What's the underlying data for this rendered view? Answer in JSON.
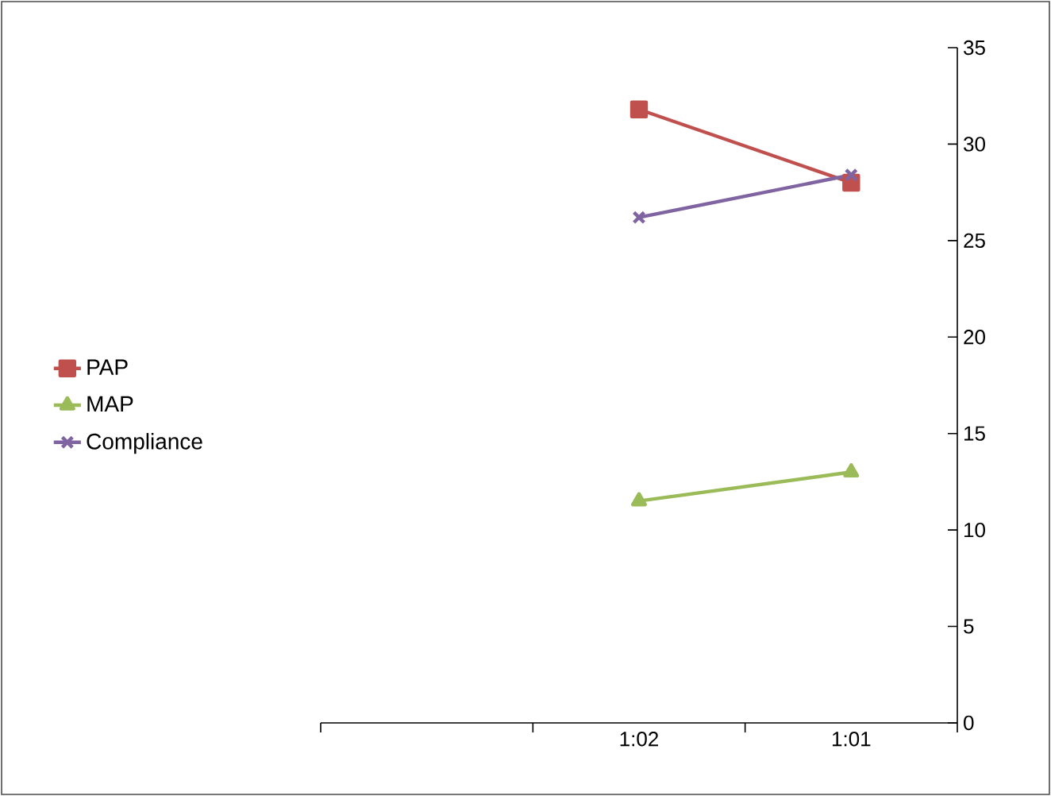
{
  "chart_data": {
    "type": "line",
    "categories": [
      null,
      "1:02",
      "1:01"
    ],
    "series": [
      {
        "name": "PAP",
        "color": "#c0504d",
        "marker": "square",
        "values": [
          null,
          31.8,
          28.0
        ]
      },
      {
        "name": "MAP",
        "color": "#9bbb59",
        "marker": "triangle",
        "values": [
          null,
          11.5,
          13.0
        ]
      },
      {
        "name": "Compliance",
        "color": "#8064a2",
        "marker": "cross",
        "values": [
          null,
          26.2,
          28.4
        ]
      }
    ],
    "ylim": [
      0,
      35
    ],
    "yticks": [
      0,
      5,
      10,
      15,
      20,
      25,
      30,
      35
    ],
    "grid": false,
    "legend": "left"
  }
}
